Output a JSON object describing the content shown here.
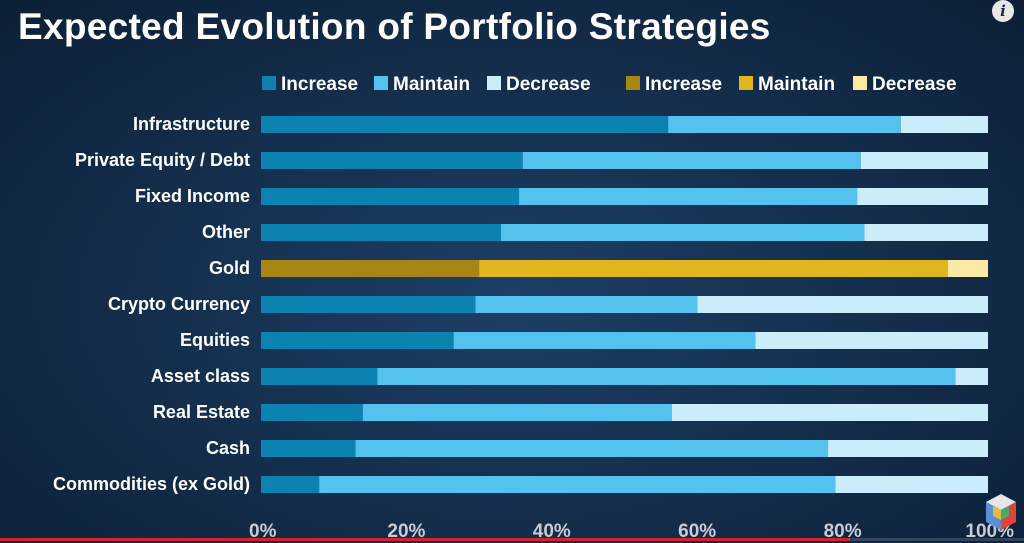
{
  "chart_data": {
    "type": "bar",
    "orientation": "horizontal",
    "stacked": true,
    "title": "Expected Evolution of Portfolio Strategies",
    "categories": [
      "Infrastructure",
      "Private Equity / Debt",
      "Fixed Income",
      "Other",
      "Gold",
      "Crypto Currency",
      "Equities",
      "Asset class",
      "Real Estate",
      "Cash",
      "Commodities (ex Gold)"
    ],
    "series": [
      {
        "name": "Increase",
        "values": [
          56,
          36,
          35.5,
          33,
          30,
          29.5,
          26.5,
          16,
          14,
          13,
          8
        ]
      },
      {
        "name": "Maintain",
        "values": [
          32,
          46.5,
          46.5,
          50,
          64.5,
          30.5,
          41.5,
          79.5,
          42.5,
          65,
          71
        ]
      },
      {
        "name": "Decrease",
        "values": [
          12,
          17.5,
          18,
          17,
          5.5,
          40,
          32,
          4.5,
          43.5,
          22,
          21
        ]
      }
    ],
    "legend": [
      {
        "label": "Increase",
        "color": "#0c82b0"
      },
      {
        "label": "Maintain",
        "color": "#54c2ee"
      },
      {
        "label": "Decrease",
        "color": "#cbecfb"
      },
      {
        "label": "Increase",
        "color": "#a88614"
      },
      {
        "label": "Maintain",
        "color": "#e0b61e"
      },
      {
        "label": "Decrease",
        "color": "#fbe9a4"
      }
    ],
    "colors": {
      "default": [
        "#0c82b0",
        "#54c2ee",
        "#cbecfb"
      ],
      "gold": [
        "#a88614",
        "#e0b61e",
        "#fbe9a4"
      ]
    },
    "gold_category": "Gold",
    "xlim": [
      0,
      100
    ],
    "ticks": [
      0,
      20,
      40,
      60,
      80,
      100
    ],
    "tick_labels": [
      "0%",
      "20%",
      "40%",
      "60%",
      "80%",
      "100%"
    ],
    "legend_position": "top"
  },
  "ui": {
    "info_icon": "i",
    "video_progress": 0.83,
    "progress_color": "#d8212a"
  }
}
